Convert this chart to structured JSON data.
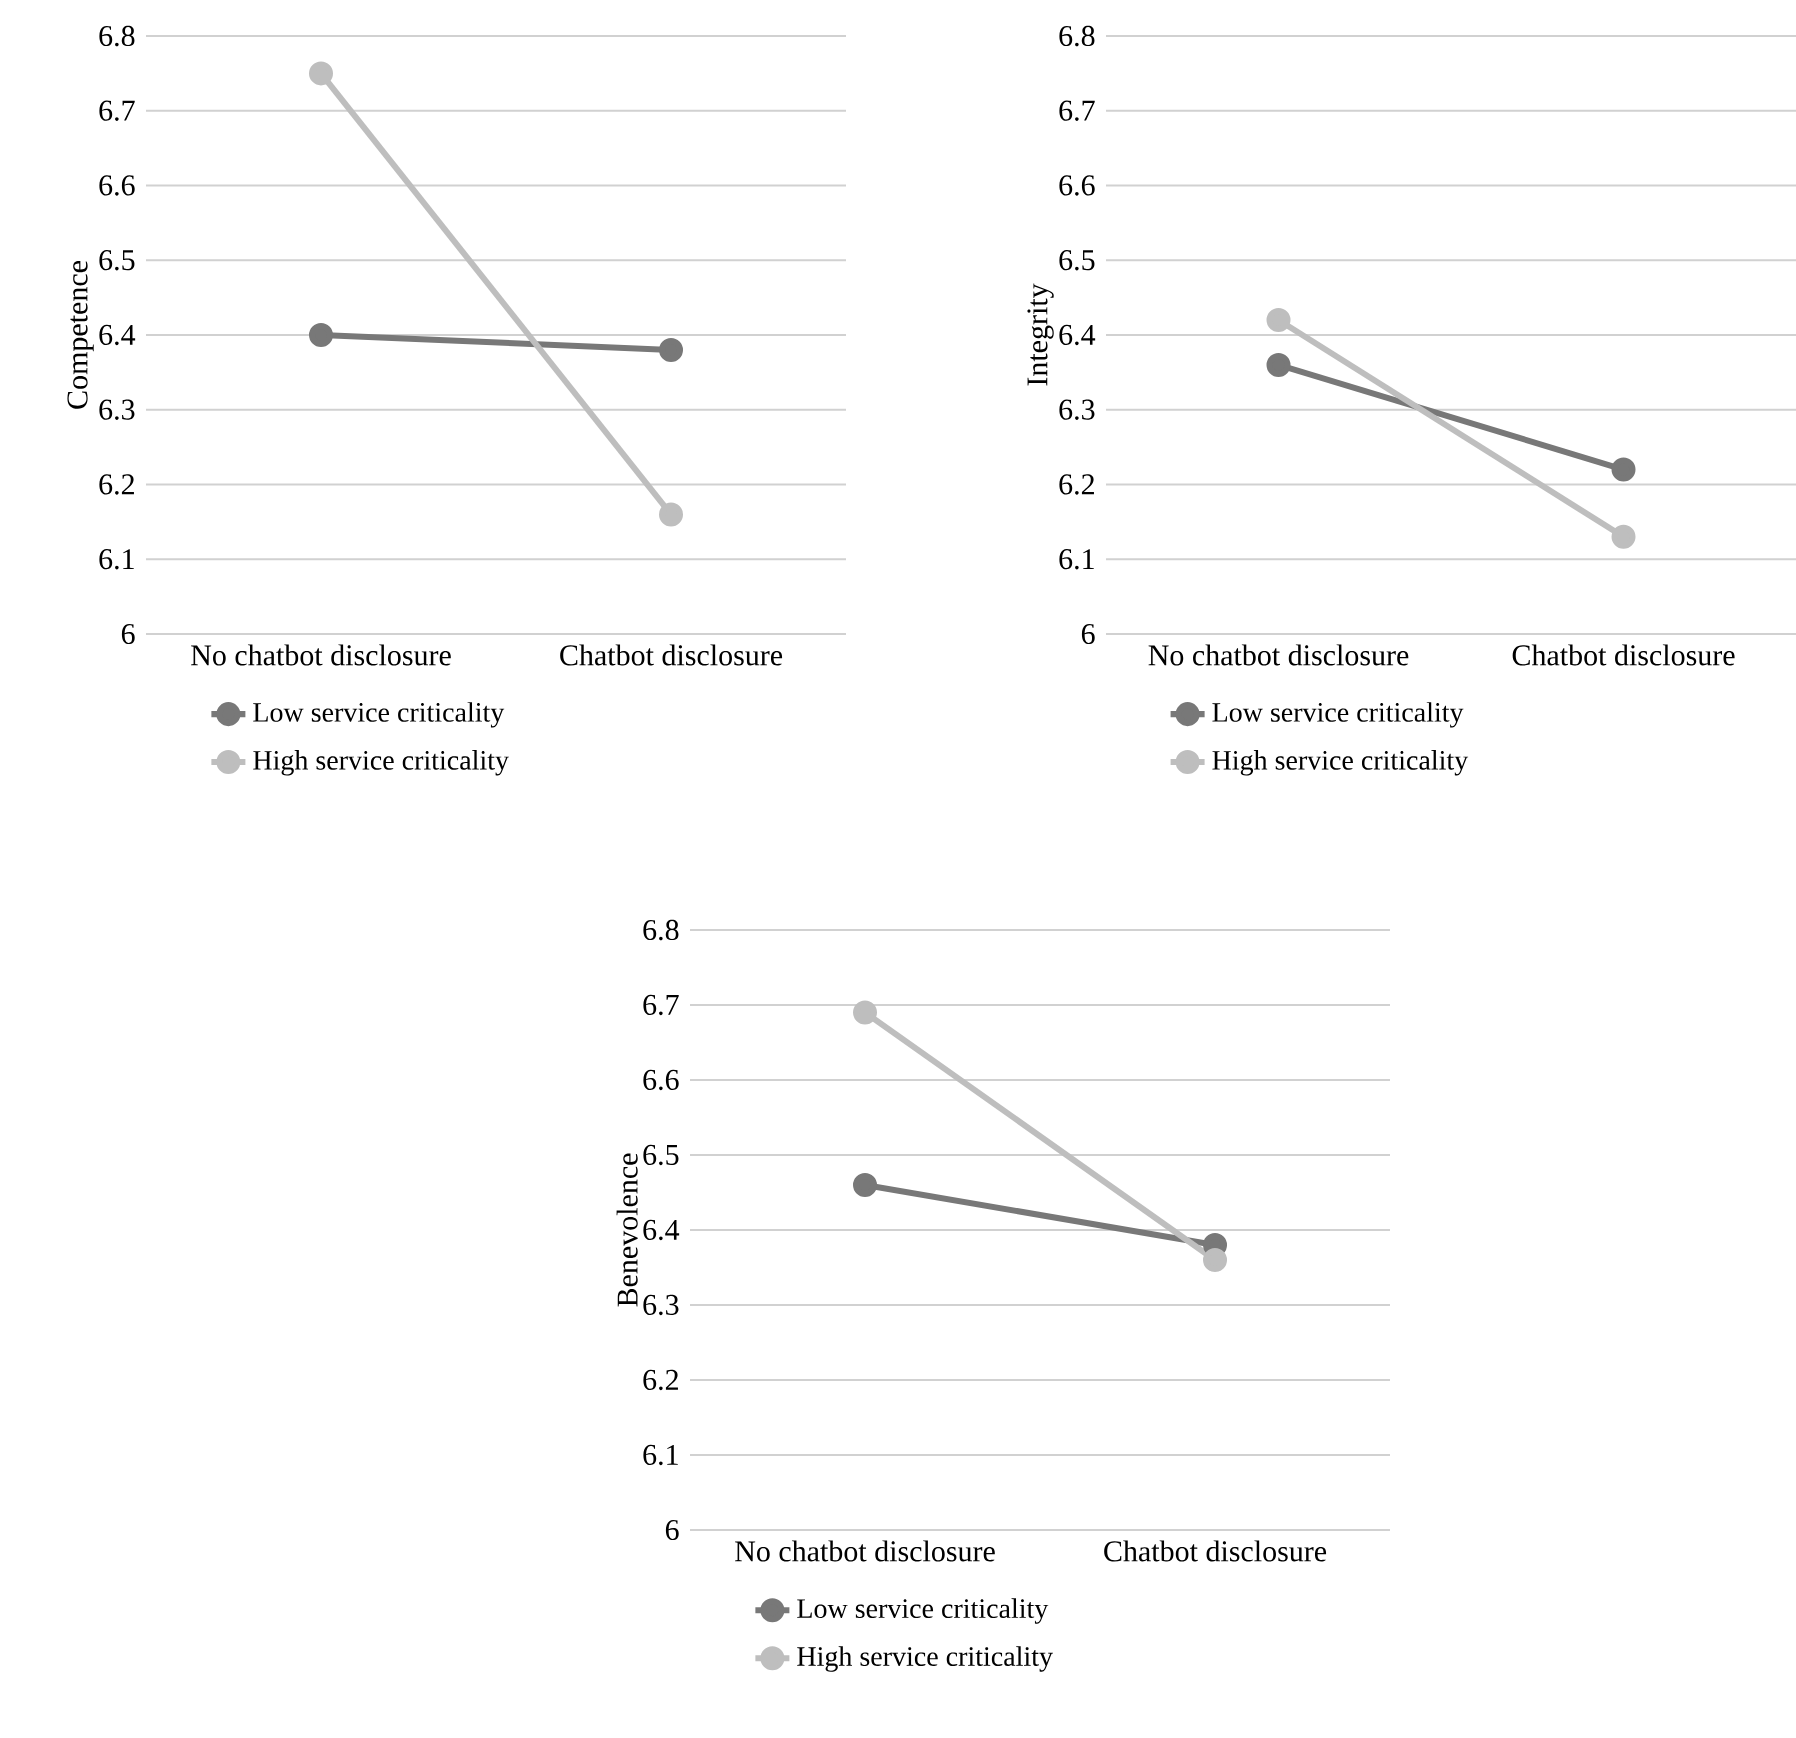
{
  "chart_data": [
    {
      "type": "line",
      "categories": [
        "No chatbot disclosure",
        "Chatbot disclosure"
      ],
      "ylabel": "Competence",
      "ylim": [
        6,
        6.8
      ],
      "yticks": [
        6,
        6.1,
        6.2,
        6.3,
        6.4,
        6.5,
        6.6,
        6.7,
        6.8
      ],
      "grid": "y",
      "legend": "bottom",
      "marker": "circle",
      "series": [
        {
          "name": "Low service criticality",
          "color": "#787878",
          "values": [
            6.4,
            6.38
          ]
        },
        {
          "name": "High service criticality",
          "color": "#bebebe",
          "values": [
            6.75,
            6.16
          ]
        }
      ]
    },
    {
      "type": "line",
      "categories": [
        "No chatbot disclosure",
        "Chatbot disclosure"
      ],
      "ylabel": "Integrity",
      "ylim": [
        6,
        6.8
      ],
      "yticks": [
        6,
        6.1,
        6.2,
        6.3,
        6.4,
        6.5,
        6.6,
        6.7,
        6.8
      ],
      "grid": "y",
      "legend": "bottom",
      "marker": "circle",
      "series": [
        {
          "name": "Low service criticality",
          "color": "#787878",
          "values": [
            6.36,
            6.22
          ]
        },
        {
          "name": "High service criticality",
          "color": "#bebebe",
          "values": [
            6.42,
            6.13
          ]
        }
      ]
    },
    {
      "type": "line",
      "categories": [
        "No chatbot disclosure",
        "Chatbot disclosure"
      ],
      "ylabel": "Benevolence",
      "ylim": [
        6,
        6.8
      ],
      "yticks": [
        6,
        6.1,
        6.2,
        6.3,
        6.4,
        6.5,
        6.6,
        6.7,
        6.8
      ],
      "grid": "y",
      "legend": "bottom",
      "marker": "circle",
      "series": [
        {
          "name": "Low service criticality",
          "color": "#787878",
          "values": [
            6.46,
            6.38
          ]
        },
        {
          "name": "High service criticality",
          "color": "#bebebe",
          "values": [
            6.69,
            6.36
          ]
        }
      ]
    }
  ]
}
